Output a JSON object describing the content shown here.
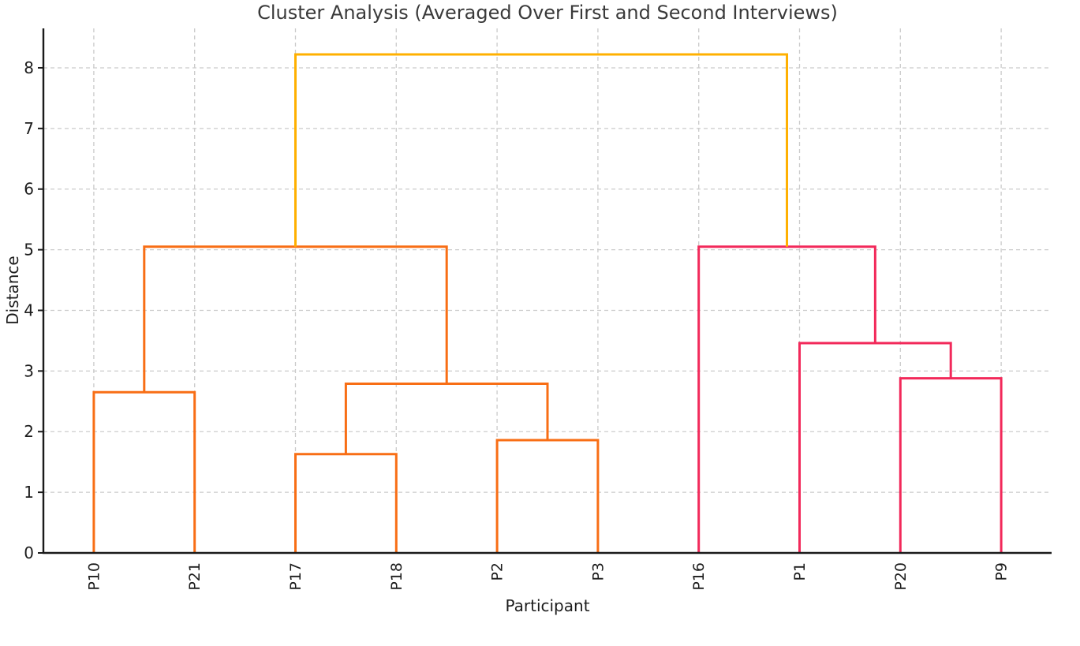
{
  "chart_data": {
    "type": "dendrogram",
    "title": "Cluster Analysis (Averaged Over First and Second Interviews)",
    "xlabel": "Participant",
    "ylabel": "Distance",
    "leaves": [
      "P10",
      "P21",
      "P17",
      "P18",
      "P2",
      "P3",
      "P16",
      "P1",
      "P20",
      "P9"
    ],
    "y_ticks": [
      0,
      1,
      2,
      3,
      4,
      5,
      6,
      7,
      8
    ],
    "ylim": [
      0,
      8.65
    ],
    "xlim": [
      0,
      100
    ],
    "grid": true,
    "legend": false,
    "links": [
      {
        "id": "m0",
        "left": "P17",
        "right": "P18",
        "height": 1.63,
        "color_key": "orange"
      },
      {
        "id": "m1",
        "left": "P2",
        "right": "P3",
        "height": 1.86,
        "color_key": "orange"
      },
      {
        "id": "m2",
        "left": "P10",
        "right": "P21",
        "height": 2.65,
        "color_key": "orange"
      },
      {
        "id": "m3",
        "left": "m0",
        "right": "m1",
        "height": 2.79,
        "color_key": "orange"
      },
      {
        "id": "m4",
        "left": "P20",
        "right": "P9",
        "height": 2.88,
        "color_key": "pink"
      },
      {
        "id": "m5",
        "left": "P1",
        "right": "m4",
        "height": 3.46,
        "color_key": "pink"
      },
      {
        "id": "m6",
        "left": "m2",
        "right": "m3",
        "height": 5.05,
        "color_key": "orange"
      },
      {
        "id": "m7",
        "left": "P16",
        "right": "m5",
        "height": 5.05,
        "color_key": "pink"
      },
      {
        "id": "m8",
        "left": "m6",
        "right": "m7",
        "height": 8.22,
        "color_key": "gold"
      }
    ],
    "colors": {
      "orange": "#F86E15",
      "pink": "#F2295A",
      "gold": "#FFB000",
      "grid": "#CBCBCB",
      "axis": "#1a1a1a",
      "tick_text": "#1c1c1c",
      "title_text": "#3a3a3a"
    }
  }
}
